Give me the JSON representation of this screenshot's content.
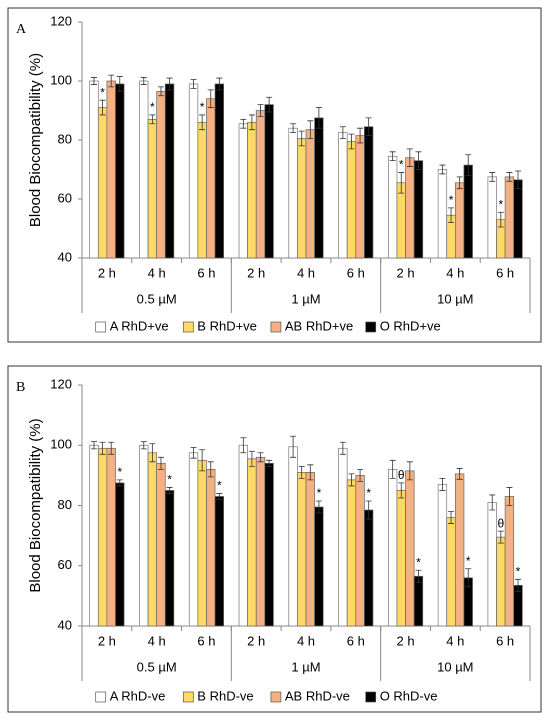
{
  "chart_data": [
    {
      "type": "bar",
      "label": "A",
      "ylabel": "Blood Biocompatibility (%)",
      "categories": [
        "2 h",
        "4 h",
        "6 h",
        "2 h",
        "4 h",
        "6 h",
        "2 h",
        "4 h",
        "6 h"
      ],
      "group_labels": [
        "0.5 µM",
        "1 µM",
        "10 µM"
      ],
      "ylim": [
        40,
        120
      ],
      "yticks": [
        40,
        60,
        80,
        100,
        120
      ],
      "series": [
        {
          "name": "A RhD+ve",
          "color": "#ffffff",
          "values": [
            100,
            100,
            99,
            85.5,
            84,
            82.5,
            74.5,
            70,
            67.5
          ],
          "errors": [
            1.2,
            1.2,
            1.5,
            1.5,
            1.5,
            2,
            1.5,
            1.5,
            1.5
          ],
          "annotations": [
            null,
            null,
            null,
            null,
            null,
            null,
            null,
            null,
            null
          ]
        },
        {
          "name": "B RhD+ve",
          "color": "#ffd966",
          "values": [
            91,
            87,
            86,
            86,
            80.5,
            79.5,
            65.5,
            54.5,
            53
          ],
          "errors": [
            2.5,
            1.5,
            2.5,
            2.5,
            2.5,
            2.5,
            3.5,
            2.5,
            2.5
          ],
          "annotations": [
            "*",
            "*",
            "*",
            null,
            null,
            null,
            "*",
            "*",
            "*"
          ]
        },
        {
          "name": "AB RhD+ve",
          "color": "#f4b183",
          "values": [
            100,
            96.5,
            94,
            90,
            83.5,
            81.5,
            74,
            65.5,
            67.5
          ],
          "errors": [
            2,
            1.5,
            3,
            2,
            3,
            2.5,
            3,
            2,
            1.5
          ]
        },
        {
          "name": "O RhD+ve",
          "color": "#000000",
          "values": [
            99,
            99,
            99,
            92,
            87.5,
            84.5,
            73,
            71.5,
            66.5
          ],
          "errors": [
            2.5,
            2,
            2,
            2.5,
            3.5,
            3,
            3,
            3.5,
            3
          ]
        }
      ]
    },
    {
      "type": "bar",
      "label": "B",
      "ylabel": "Blood Biocompatibility (%)",
      "categories": [
        "2 h",
        "4 h",
        "6 h",
        "2 h",
        "4 h",
        "6 h",
        "2 h",
        "4 h",
        "6 h"
      ],
      "group_labels": [
        "0.5 µM",
        "1 µM",
        "10 µM"
      ],
      "ylim": [
        40,
        120
      ],
      "yticks": [
        40,
        60,
        80,
        100,
        120
      ],
      "series": [
        {
          "name": "A RhD-ve",
          "color": "#ffffff",
          "values": [
            100,
            100,
            97.5,
            100,
            99.5,
            99,
            92,
            87,
            81
          ],
          "errors": [
            1.2,
            1.2,
            1.8,
            2.5,
            3.5,
            2,
            3,
            2,
            2.5
          ]
        },
        {
          "name": "B RhD-ve",
          "color": "#ffd966",
          "values": [
            99,
            97.5,
            95,
            95.5,
            91,
            88.5,
            85,
            76,
            69.5
          ],
          "errors": [
            2,
            3,
            3.5,
            2.5,
            2,
            2,
            2.5,
            2,
            2
          ],
          "annotations": [
            null,
            null,
            null,
            null,
            null,
            null,
            "θ",
            null,
            "θ"
          ]
        },
        {
          "name": "AB RhD-ve",
          "color": "#f4b183",
          "values": [
            99,
            94,
            92,
            96,
            91,
            90,
            91.5,
            90.5,
            83
          ],
          "errors": [
            2,
            2,
            2.5,
            1.5,
            2.5,
            2,
            3,
            1.8,
            3
          ]
        },
        {
          "name": "O RhD-ve",
          "color": "#000000",
          "values": [
            87.5,
            85,
            83,
            94,
            79.5,
            78.5,
            56.5,
            56,
            53.5
          ],
          "errors": [
            1,
            1,
            1,
            1,
            2,
            3,
            2,
            3,
            2
          ],
          "annotations": [
            "*",
            "*",
            "*",
            null,
            "*",
            "*",
            "*",
            "*",
            "*"
          ]
        }
      ]
    }
  ]
}
